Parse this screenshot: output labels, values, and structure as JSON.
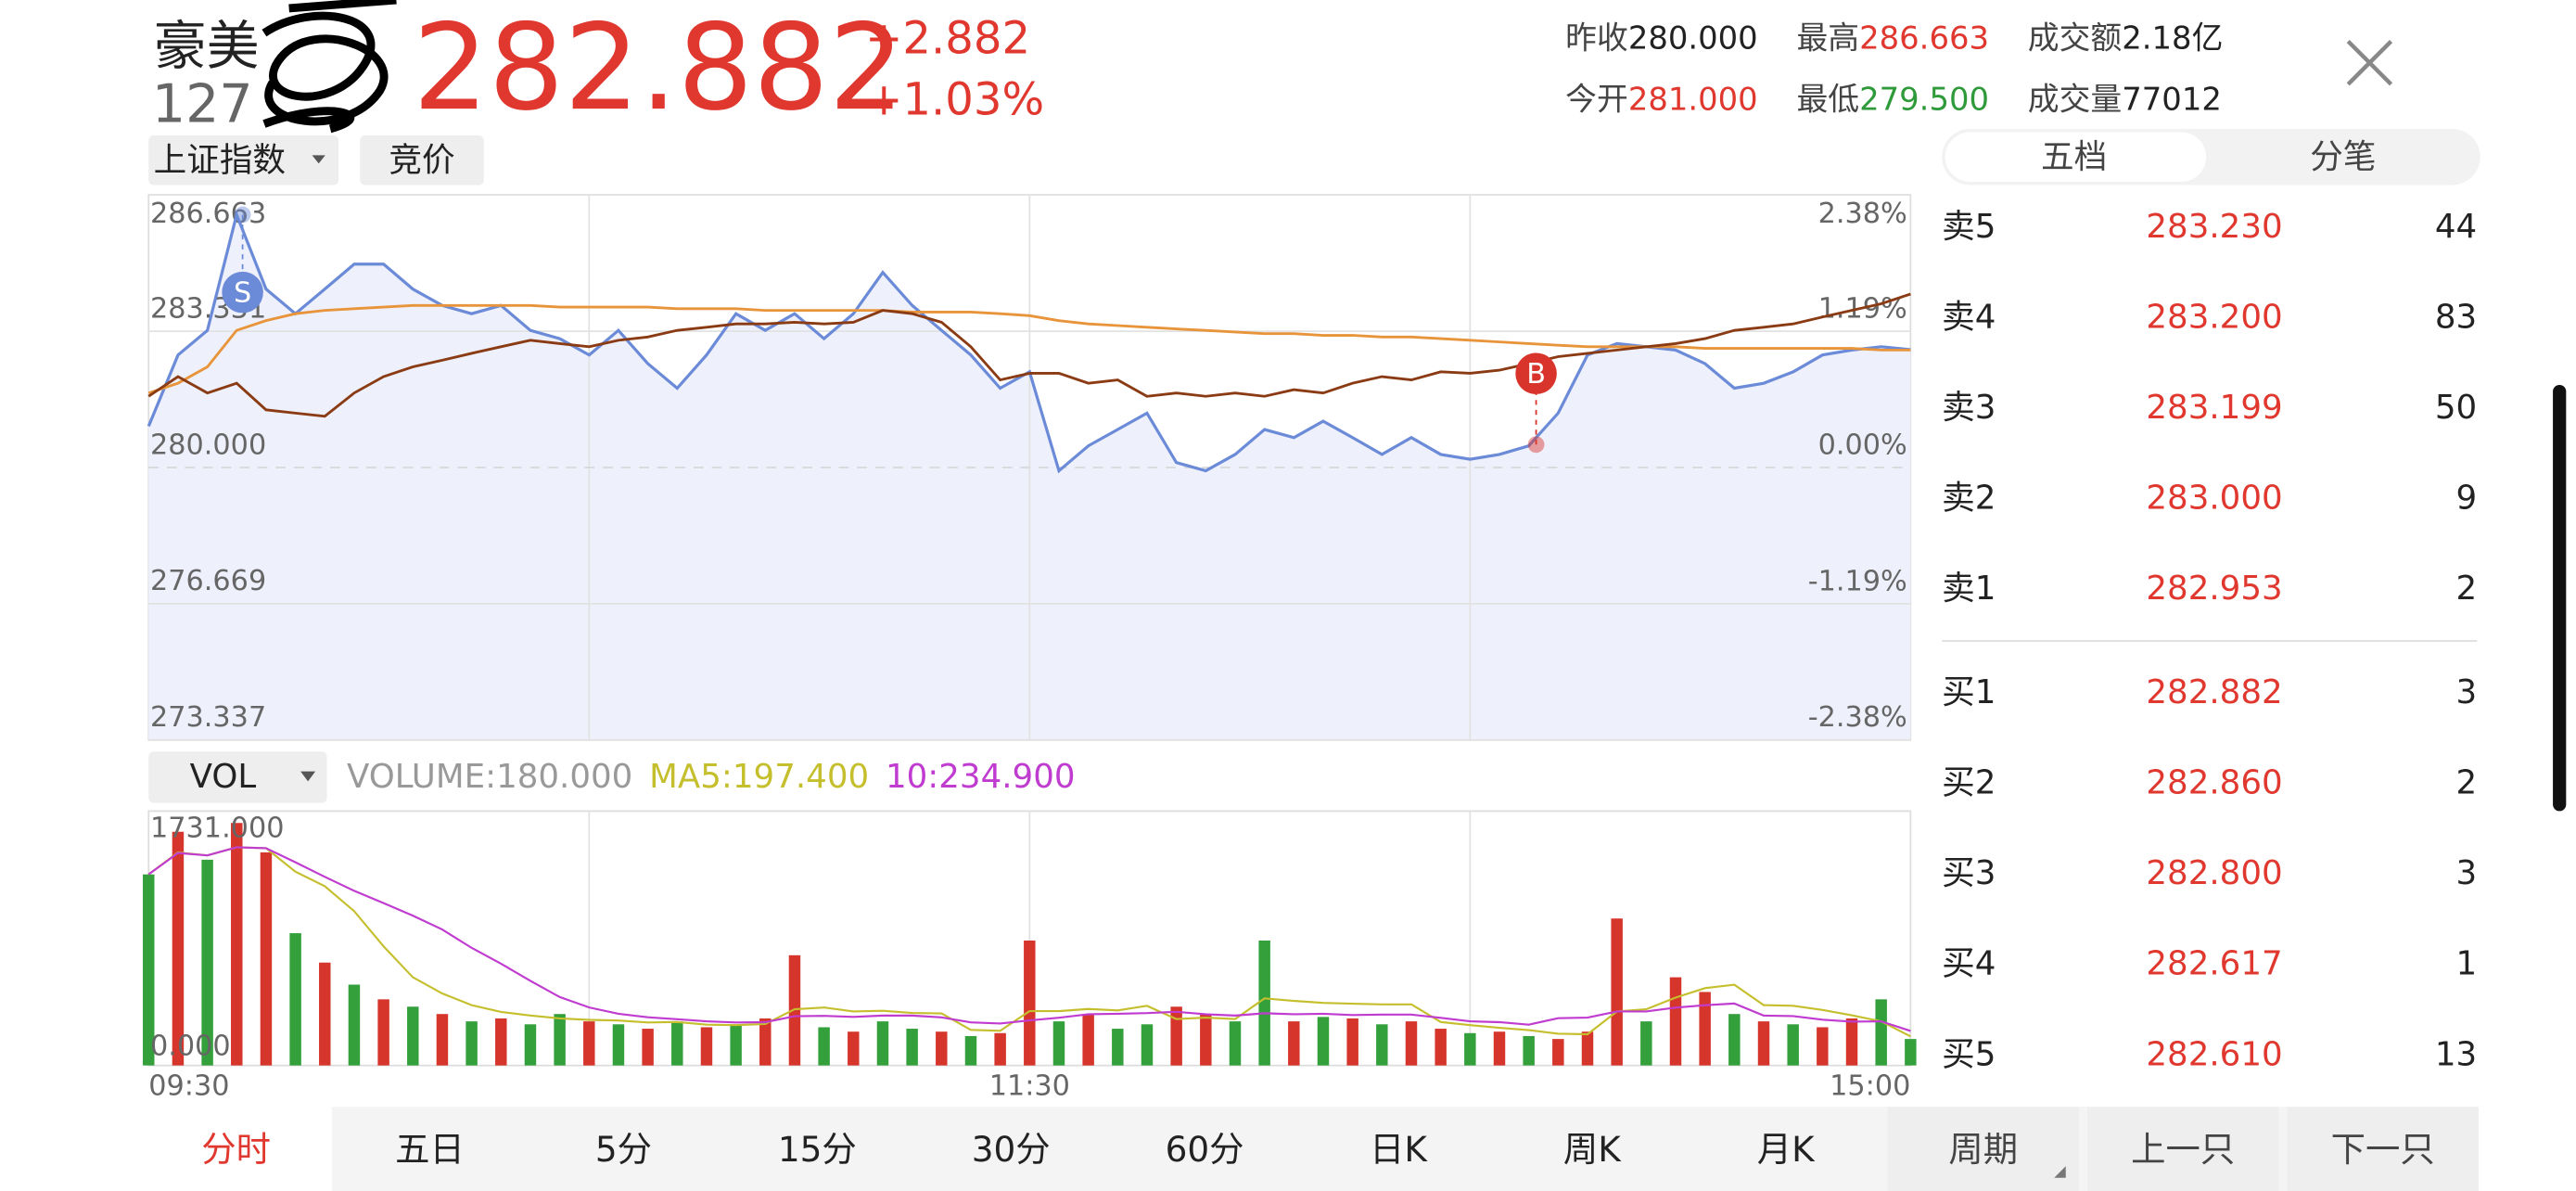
{
  "header": {
    "name": "豪美",
    "code": "127",
    "price": "282.882",
    "change": "+2.882",
    "change_pct": "+1.03%"
  },
  "stats": [
    {
      "label": "昨收",
      "value": "280.000",
      "tone": "flat"
    },
    {
      "label": "最高",
      "value": "286.663",
      "tone": "up"
    },
    {
      "label": "成交额",
      "value": "2.18亿",
      "tone": "flat"
    },
    {
      "label": "今开",
      "value": "281.000",
      "tone": "up"
    },
    {
      "label": "最低",
      "value": "279.500",
      "tone": "down"
    },
    {
      "label": "成交量",
      "value": "77012",
      "tone": "flat"
    }
  ],
  "top_buttons": [
    "上证指数",
    "竞价"
  ],
  "side_tabs": {
    "items": [
      "五档",
      "分笔"
    ],
    "active": 0
  },
  "order_book": {
    "asks": [
      {
        "label": "卖5",
        "price": "283.230",
        "qty": "44"
      },
      {
        "label": "卖4",
        "price": "283.200",
        "qty": "83"
      },
      {
        "label": "卖3",
        "price": "283.199",
        "qty": "50"
      },
      {
        "label": "卖2",
        "price": "283.000",
        "qty": "9"
      },
      {
        "label": "卖1",
        "price": "282.953",
        "qty": "2"
      }
    ],
    "bids": [
      {
        "label": "买1",
        "price": "282.882",
        "qty": "3"
      },
      {
        "label": "买2",
        "price": "282.860",
        "qty": "2"
      },
      {
        "label": "买3",
        "price": "282.800",
        "qty": "3"
      },
      {
        "label": "买4",
        "price": "282.617",
        "qty": "1"
      },
      {
        "label": "买5",
        "price": "282.610",
        "qty": "13"
      }
    ]
  },
  "bottom_tabs": {
    "items": [
      "分时",
      "五日",
      "5分",
      "15分",
      "30分",
      "60分",
      "日K",
      "周K",
      "月K"
    ],
    "active": 0
  },
  "bottom_buttons": [
    "周期",
    "上一只",
    "下一只"
  ],
  "chart_data": [
    {
      "type": "line",
      "x": [
        0,
        4,
        8,
        12,
        16,
        20,
        24,
        28,
        32,
        36,
        40,
        44,
        48,
        52,
        56,
        60,
        64,
        68,
        72,
        76,
        80,
        84,
        88,
        92,
        96,
        100,
        104,
        108,
        112,
        116,
        120,
        124,
        128,
        132,
        136,
        140,
        144,
        148,
        152,
        156,
        160,
        164,
        168,
        172,
        176,
        180,
        184,
        188,
        192,
        196,
        200,
        204,
        208,
        212,
        216,
        220,
        224,
        228,
        232,
        236,
        240
      ],
      "xlim": [
        0,
        240
      ],
      "xgrid": [
        60,
        120,
        180
      ],
      "ylim": [
        273.337,
        286.663
      ],
      "yticks": [
        286.663,
        283.331,
        {
          "value": 280,
          "label": "280.000"
        },
        276.669,
        273.337
      ],
      "y2lim": [
        -2.38,
        2.38
      ],
      "y2ticks": [
        {
          "value": 2.38,
          "label": "2.38%"
        },
        {
          "value": 1.19,
          "label": "1.19%"
        },
        {
          "value": 0,
          "label": "0.00%"
        },
        {
          "value": -1.19,
          "label": "-1.19%"
        },
        {
          "value": -2.38,
          "label": "-2.38%"
        }
      ],
      "baseline": 280,
      "grid": true,
      "series": [
        {
          "color": "#6b8bd8",
          "fill": "#eef0fb",
          "values": [
            281.01,
            282.75,
            283.35,
            286.18,
            284.36,
            283.76,
            284.36,
            284.97,
            284.97,
            284.36,
            283.96,
            283.76,
            283.96,
            283.35,
            283.15,
            282.75,
            283.35,
            282.54,
            281.94,
            282.75,
            283.76,
            283.35,
            283.76,
            283.15,
            283.76,
            284.77,
            283.96,
            283.35,
            282.75,
            281.94,
            282.34,
            279.92,
            280.53,
            280.93,
            281.33,
            280.12,
            279.92,
            280.32,
            280.93,
            280.73,
            281.13,
            280.73,
            280.32,
            280.73,
            280.32,
            280.2,
            280.32,
            280.53,
            281.33,
            282.75,
            283.03,
            282.95,
            282.87,
            282.54,
            281.94,
            282.06,
            282.34,
            282.75,
            282.87,
            282.95,
            282.88
          ]
        },
        {
          "color": "#e8943a",
          "values": [
            281.82,
            282.06,
            282.46,
            283.35,
            283.59,
            283.76,
            283.84,
            283.88,
            283.92,
            283.96,
            283.96,
            283.96,
            283.96,
            283.96,
            283.92,
            283.92,
            283.92,
            283.92,
            283.88,
            283.88,
            283.88,
            283.84,
            283.84,
            283.84,
            283.84,
            283.84,
            283.8,
            283.8,
            283.8,
            283.76,
            283.71,
            283.59,
            283.51,
            283.47,
            283.43,
            283.39,
            283.35,
            283.31,
            283.27,
            283.27,
            283.23,
            283.23,
            283.19,
            283.19,
            283.15,
            283.11,
            283.07,
            283.03,
            282.99,
            282.95,
            282.95,
            282.95,
            282.95,
            282.91,
            282.91,
            282.91,
            282.91,
            282.91,
            282.91,
            282.87,
            282.87
          ]
        },
        {
          "color": "#8a3b14",
          "values": [
            281.74,
            282.22,
            281.82,
            282.06,
            281.41,
            281.33,
            281.25,
            281.82,
            282.22,
            282.46,
            282.62,
            282.79,
            282.95,
            283.11,
            283.03,
            282.95,
            283.11,
            283.19,
            283.35,
            283.43,
            283.51,
            283.51,
            283.55,
            283.51,
            283.55,
            283.84,
            283.76,
            283.55,
            282.95,
            282.14,
            282.3,
            282.3,
            282.06,
            282.14,
            281.74,
            281.82,
            281.74,
            281.82,
            281.74,
            281.9,
            281.82,
            282.06,
            282.22,
            282.14,
            282.34,
            282.3,
            282.38,
            282.54,
            282.71,
            282.79,
            282.87,
            282.95,
            283.03,
            283.15,
            283.35,
            283.43,
            283.51,
            283.68,
            283.84,
            284.0,
            284.24
          ]
        }
      ],
      "annotations": [
        {
          "label": "S",
          "x": 12.8,
          "y": 286.18,
          "color": "#6b8bd8"
        },
        {
          "label": "B",
          "x": 189,
          "y": 280.56,
          "color": "#d9342b"
        }
      ]
    },
    {
      "type": "bar",
      "indicators": [
        {
          "label": "VOLUME:",
          "value": "180.000",
          "color": "#999999"
        },
        {
          "label": "MA5:",
          "value": "197.400",
          "color": "#c5bf2e"
        },
        {
          "label": "10:",
          "value": "234.900",
          "color": "#c03bd0"
        }
      ],
      "selector": "VOL",
      "x": [
        0,
        4,
        8,
        12,
        16,
        20,
        24,
        28,
        32,
        36,
        40,
        44,
        48,
        52,
        56,
        60,
        64,
        68,
        72,
        76,
        80,
        84,
        88,
        92,
        96,
        100,
        104,
        108,
        112,
        116,
        120,
        124,
        128,
        132,
        136,
        140,
        144,
        148,
        152,
        156,
        160,
        164,
        168,
        172,
        176,
        180,
        184,
        188,
        192,
        196,
        200,
        204,
        208,
        212,
        216,
        220,
        224,
        228,
        232,
        236,
        240
      ],
      "xlim": [
        0,
        240
      ],
      "xgrid": [
        60,
        120,
        180
      ],
      "xticks": [
        {
          "value": 0,
          "label": "09:30"
        },
        {
          "value": 120,
          "label": "11:30"
        },
        {
          "value": 240,
          "label": "15:00"
        }
      ],
      "ylim": [
        0,
        1731
      ],
      "yticks": [
        {
          "value": 1731,
          "label": "1731.000"
        },
        {
          "value": 0,
          "label": "0.000"
        }
      ],
      "bars": {
        "values": [
          1300,
          1590,
          1400,
          1650,
          1450,
          900,
          700,
          550,
          450,
          400,
          350,
          300,
          320,
          280,
          350,
          300,
          280,
          250,
          300,
          260,
          280,
          320,
          750,
          260,
          230,
          300,
          250,
          230,
          200,
          220,
          850,
          300,
          350,
          250,
          280,
          400,
          350,
          300,
          850,
          300,
          330,
          320,
          280,
          300,
          250,
          220,
          230,
          200,
          180,
          230,
          1000,
          300,
          600,
          500,
          350,
          300,
          280,
          260,
          320,
          450,
          180
        ],
        "colors": [
          "#34a03c",
          "#d6352c",
          "#34a03c",
          "#d6352c",
          "#d6352c",
          "#34a03c",
          "#d6352c",
          "#34a03c",
          "#d6352c",
          "#34a03c",
          "#d6352c",
          "#34a03c",
          "#d6352c",
          "#34a03c",
          "#34a03c",
          "#d6352c",
          "#34a03c",
          "#d6352c",
          "#34a03c",
          "#d6352c",
          "#34a03c",
          "#d6352c",
          "#d6352c",
          "#34a03c",
          "#d6352c",
          "#34a03c",
          "#34a03c",
          "#d6352c",
          "#34a03c",
          "#d6352c",
          "#d6352c",
          "#34a03c",
          "#d6352c",
          "#34a03c",
          "#34a03c",
          "#d6352c",
          "#d6352c",
          "#34a03c",
          "#34a03c",
          "#d6352c",
          "#34a03c",
          "#d6352c",
          "#34a03c",
          "#d6352c",
          "#d6352c",
          "#34a03c",
          "#d6352c",
          "#34a03c",
          "#d6352c",
          "#d6352c",
          "#d6352c",
          "#34a03c",
          "#d6352c",
          "#d6352c",
          "#34a03c",
          "#d6352c",
          "#34a03c",
          "#d6352c",
          "#d6352c",
          "#34a03c",
          "#34a03c"
        ]
      },
      "series": [
        {
          "color": "#c5bf2e",
          "values": [
            1300,
            1450,
            1430,
            1485,
            1478,
            1318,
            1220,
            1050,
            810,
            600,
            490,
            410,
            364,
            340,
            320,
            310,
            306,
            292,
            296,
            278,
            274,
            282,
            382,
            394,
            368,
            372,
            358,
            354,
            242,
            236,
            370,
            370,
            384,
            374,
            406,
            316,
            326,
            316,
            456,
            440,
            426,
            420,
            416,
            416,
            296,
            274,
            256,
            240,
            216,
            212,
            368,
            382,
            462,
            526,
            550,
            410,
            406,
            378,
            342,
            300,
            197.4
          ]
        },
        {
          "color": "#c03bd0",
          "values": [
            1300,
            1445,
            1430,
            1485,
            1478,
            1382,
            1284,
            1188,
            1105,
            1020,
            925,
            800,
            692,
            575,
            465,
            395,
            352,
            328,
            315,
            300,
            292,
            294,
            335,
            337,
            331,
            340,
            339,
            327,
            293,
            285,
            307,
            325,
            348,
            352,
            356,
            365,
            349,
            340,
            355,
            349,
            352,
            343,
            346,
            346,
            324,
            300,
            294,
            278,
            322,
            326,
            367,
            367,
            393,
            410,
            422,
            340,
            336,
            311,
            298,
            300,
            234.9
          ]
        }
      ]
    }
  ]
}
